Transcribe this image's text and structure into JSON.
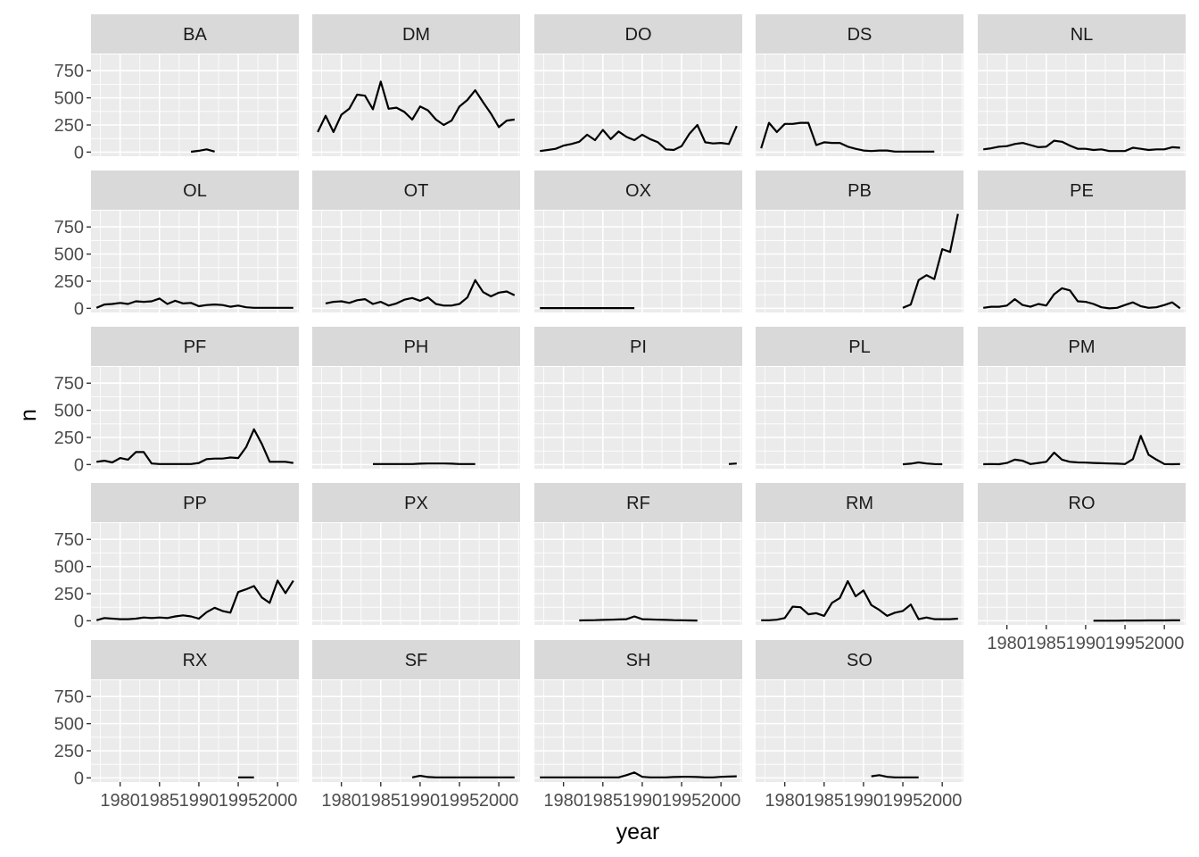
{
  "chart_data": {
    "type": "line",
    "xlabel": "year",
    "ylabel": "n",
    "xlim": [
      1976.3,
      2002.7
    ],
    "ylim": [
      -38,
      900
    ],
    "x_ticks": [
      1980,
      1985,
      1990,
      1995,
      2000
    ],
    "x_tick_labels": [
      "1980",
      "1985",
      "1990",
      "1995",
      "2000"
    ],
    "y_ticks": [
      0,
      250,
      500,
      750
    ],
    "y_tick_labels": [
      "0",
      "250",
      "500",
      "750"
    ],
    "ncol": 5,
    "grid": true,
    "legend": "none",
    "line_color": "#000000",
    "panel_background": "#ebebeb",
    "strip_background": "#d9d9d9",
    "panels": [
      {
        "label": "BA",
        "x": [
          1989,
          1990,
          1991,
          1992
        ],
        "y": [
          3,
          12,
          25,
          5
        ]
      },
      {
        "label": "DM",
        "x": [
          1977,
          1978,
          1979,
          1980,
          1981,
          1982,
          1983,
          1984,
          1985,
          1986,
          1987,
          1988,
          1989,
          1990,
          1991,
          1992,
          1993,
          1994,
          1995,
          1996,
          1997,
          1998,
          1999,
          2000,
          2001,
          2002
        ],
        "y": [
          185,
          335,
          185,
          345,
          400,
          530,
          520,
          395,
          650,
          400,
          410,
          370,
          300,
          420,
          385,
          300,
          250,
          290,
          420,
          480,
          570,
          460,
          355,
          230,
          290,
          300
        ]
      },
      {
        "label": "DO",
        "x": [
          1977,
          1978,
          1979,
          1980,
          1981,
          1982,
          1983,
          1984,
          1985,
          1986,
          1987,
          1988,
          1989,
          1990,
          1991,
          1992,
          1993,
          1994,
          1995,
          1996,
          1997,
          1998,
          1999,
          2000,
          2001,
          2002
        ],
        "y": [
          10,
          20,
          30,
          60,
          75,
          95,
          160,
          110,
          205,
          120,
          190,
          140,
          110,
          160,
          120,
          90,
          25,
          20,
          55,
          170,
          250,
          90,
          80,
          85,
          75,
          240
        ]
      },
      {
        "label": "DS",
        "x": [
          1977,
          1978,
          1979,
          1980,
          1981,
          1982,
          1983,
          1984,
          1985,
          1986,
          1987,
          1988,
          1989,
          1990,
          1991,
          1992,
          1993,
          1994,
          1995,
          1996,
          1997,
          1998,
          1999
        ],
        "y": [
          35,
          270,
          185,
          260,
          260,
          270,
          270,
          65,
          90,
          85,
          85,
          50,
          30,
          15,
          10,
          15,
          15,
          5,
          5,
          5,
          5,
          5,
          5
        ]
      },
      {
        "label": "NL",
        "x": [
          1977,
          1978,
          1979,
          1980,
          1981,
          1982,
          1983,
          1984,
          1985,
          1986,
          1987,
          1988,
          1989,
          1990,
          1991,
          1992,
          1993,
          1994,
          1995,
          1996,
          1997,
          1998,
          1999,
          2000,
          2001,
          2002
        ],
        "y": [
          25,
          35,
          50,
          55,
          75,
          85,
          65,
          45,
          50,
          105,
          95,
          60,
          30,
          30,
          20,
          25,
          10,
          10,
          10,
          40,
          30,
          20,
          25,
          25,
          45,
          40
        ]
      },
      {
        "label": "OL",
        "x": [
          1977,
          1978,
          1979,
          1980,
          1981,
          1982,
          1983,
          1984,
          1985,
          1986,
          1987,
          1988,
          1989,
          1990,
          1991,
          1992,
          1993,
          1994,
          1995,
          1996,
          1997,
          1998,
          1999,
          2000,
          2001,
          2002
        ],
        "y": [
          5,
          35,
          40,
          50,
          40,
          65,
          60,
          65,
          90,
          40,
          70,
          45,
          50,
          20,
          30,
          35,
          30,
          15,
          25,
          10,
          5,
          5,
          5,
          5,
          5,
          5
        ]
      },
      {
        "label": "OT",
        "x": [
          1978,
          1979,
          1980,
          1981,
          1982,
          1983,
          1984,
          1985,
          1986,
          1987,
          1988,
          1989,
          1990,
          1991,
          1992,
          1993,
          1994,
          1995,
          1996,
          1997,
          1998,
          1999,
          2000,
          2001,
          2002
        ],
        "y": [
          45,
          60,
          65,
          50,
          75,
          85,
          40,
          60,
          25,
          45,
          80,
          95,
          70,
          100,
          40,
          25,
          25,
          40,
          100,
          260,
          150,
          110,
          145,
          155,
          120
        ]
      },
      {
        "label": "OX",
        "x": [
          1977,
          1978,
          1979,
          1980,
          1981,
          1982,
          1983,
          1984,
          1985,
          1986,
          1987,
          1988,
          1989
        ],
        "y": [
          2,
          2,
          2,
          2,
          2,
          2,
          2,
          2,
          2,
          2,
          2,
          2,
          2
        ]
      },
      {
        "label": "PB",
        "x": [
          1995,
          1996,
          1997,
          1998,
          1999,
          2000,
          2001,
          2002
        ],
        "y": [
          5,
          35,
          260,
          305,
          270,
          545,
          520,
          870
        ]
      },
      {
        "label": "PE",
        "x": [
          1977,
          1978,
          1979,
          1980,
          1981,
          1982,
          1983,
          1984,
          1985,
          1986,
          1987,
          1988,
          1989,
          1990,
          1991,
          1992,
          1993,
          1994,
          1995,
          1996,
          1997,
          1998,
          1999,
          2000,
          2001,
          2002
        ],
        "y": [
          5,
          15,
          15,
          25,
          85,
          30,
          15,
          40,
          25,
          130,
          185,
          165,
          65,
          60,
          40,
          10,
          0,
          5,
          30,
          55,
          20,
          5,
          10,
          30,
          55,
          0
        ]
      },
      {
        "label": "PF",
        "x": [
          1977,
          1978,
          1979,
          1980,
          1981,
          1982,
          1983,
          1984,
          1985,
          1986,
          1987,
          1988,
          1989,
          1990,
          1991,
          1992,
          1993,
          1994,
          1995,
          1996,
          1997,
          1998,
          1999,
          2000,
          2001,
          2002
        ],
        "y": [
          25,
          35,
          20,
          60,
          45,
          115,
          115,
          10,
          5,
          5,
          5,
          5,
          5,
          15,
          50,
          55,
          55,
          65,
          60,
          160,
          325,
          190,
          25,
          25,
          25,
          15
        ]
      },
      {
        "label": "PH",
        "x": [
          1984,
          1985,
          1986,
          1987,
          1988,
          1989,
          1990,
          1991,
          1992,
          1993,
          1994,
          1995,
          1996,
          1997
        ],
        "y": [
          5,
          5,
          5,
          5,
          5,
          5,
          8,
          10,
          10,
          10,
          8,
          5,
          5,
          5
        ]
      },
      {
        "label": "PI",
        "x": [
          2001,
          2002
        ],
        "y": [
          5,
          10
        ]
      },
      {
        "label": "PL",
        "x": [
          1995,
          1996,
          1997,
          1998,
          1999,
          2000
        ],
        "y": [
          2,
          8,
          20,
          10,
          5,
          3
        ]
      },
      {
        "label": "PM",
        "x": [
          1977,
          1978,
          1979,
          1980,
          1981,
          1982,
          1983,
          1984,
          1985,
          1986,
          1987,
          1988,
          1989,
          1990,
          1991,
          1992,
          1993,
          1994,
          1995,
          1996,
          1997,
          1998,
          1999,
          2000,
          2001,
          2002
        ],
        "y": [
          3,
          5,
          3,
          15,
          45,
          35,
          5,
          15,
          25,
          110,
          45,
          25,
          20,
          18,
          15,
          12,
          10,
          8,
          5,
          50,
          265,
          90,
          45,
          5,
          3,
          5
        ]
      },
      {
        "label": "PP",
        "x": [
          1977,
          1978,
          1979,
          1980,
          1981,
          1982,
          1983,
          1984,
          1985,
          1986,
          1987,
          1988,
          1989,
          1990,
          1991,
          1992,
          1993,
          1994,
          1995,
          1996,
          1997,
          1998,
          1999,
          2000,
          2001,
          2002
        ],
        "y": [
          5,
          25,
          20,
          15,
          15,
          20,
          30,
          25,
          30,
          25,
          40,
          50,
          40,
          20,
          80,
          120,
          90,
          75,
          265,
          290,
          320,
          215,
          165,
          370,
          255,
          370
        ]
      },
      {
        "label": "PX",
        "x": [],
        "y": []
      },
      {
        "label": "RF",
        "x": [
          1982,
          1983,
          1984,
          1985,
          1986,
          1987,
          1988,
          1989,
          1990,
          1991,
          1992,
          1993,
          1994,
          1995,
          1996,
          1997
        ],
        "y": [
          3,
          5,
          6,
          8,
          10,
          12,
          15,
          40,
          15,
          12,
          10,
          8,
          6,
          5,
          3,
          2
        ]
      },
      {
        "label": "RM",
        "x": [
          1977,
          1978,
          1979,
          1980,
          1981,
          1982,
          1983,
          1984,
          1985,
          1986,
          1987,
          1988,
          1989,
          1990,
          1991,
          1992,
          1993,
          1994,
          1995,
          1996,
          1997,
          1998,
          1999,
          2000,
          2001,
          2002
        ],
        "y": [
          5,
          5,
          10,
          25,
          130,
          125,
          60,
          70,
          45,
          165,
          210,
          365,
          225,
          280,
          145,
          100,
          45,
          75,
          90,
          150,
          15,
          30,
          15,
          15,
          15,
          20
        ]
      },
      {
        "label": "RO",
        "x": [
          1991,
          1992,
          1993,
          1994,
          1995,
          1996,
          1997,
          1998,
          1999,
          2000,
          2001,
          2002
        ],
        "y": [
          1,
          1,
          1,
          1,
          2,
          2,
          2,
          3,
          3,
          3,
          4,
          4
        ]
      },
      {
        "label": "RX",
        "x": [
          1995,
          1996,
          1997
        ],
        "y": [
          5,
          5,
          5
        ]
      },
      {
        "label": "SF",
        "x": [
          1989,
          1990,
          1991,
          1992,
          1993,
          1994,
          1995,
          1996,
          1997,
          1998,
          1999,
          2000,
          2001,
          2002
        ],
        "y": [
          5,
          20,
          8,
          5,
          5,
          5,
          5,
          5,
          5,
          5,
          5,
          5,
          5,
          5
        ]
      },
      {
        "label": "SH",
        "x": [
          1977,
          1978,
          1979,
          1980,
          1981,
          1982,
          1983,
          1984,
          1985,
          1986,
          1987,
          1988,
          1989,
          1990,
          1991,
          1992,
          1993,
          1994,
          1995,
          1996,
          1997,
          1998,
          1999,
          2000,
          2001,
          2002
        ],
        "y": [
          5,
          5,
          5,
          5,
          5,
          5,
          5,
          5,
          5,
          5,
          5,
          25,
          50,
          10,
          5,
          5,
          5,
          8,
          10,
          10,
          8,
          5,
          5,
          10,
          12,
          15
        ]
      },
      {
        "label": "SO",
        "x": [
          1991,
          1992,
          1993,
          1994,
          1995,
          1996,
          1997
        ],
        "y": [
          15,
          25,
          10,
          5,
          5,
          5,
          5
        ]
      }
    ]
  }
}
